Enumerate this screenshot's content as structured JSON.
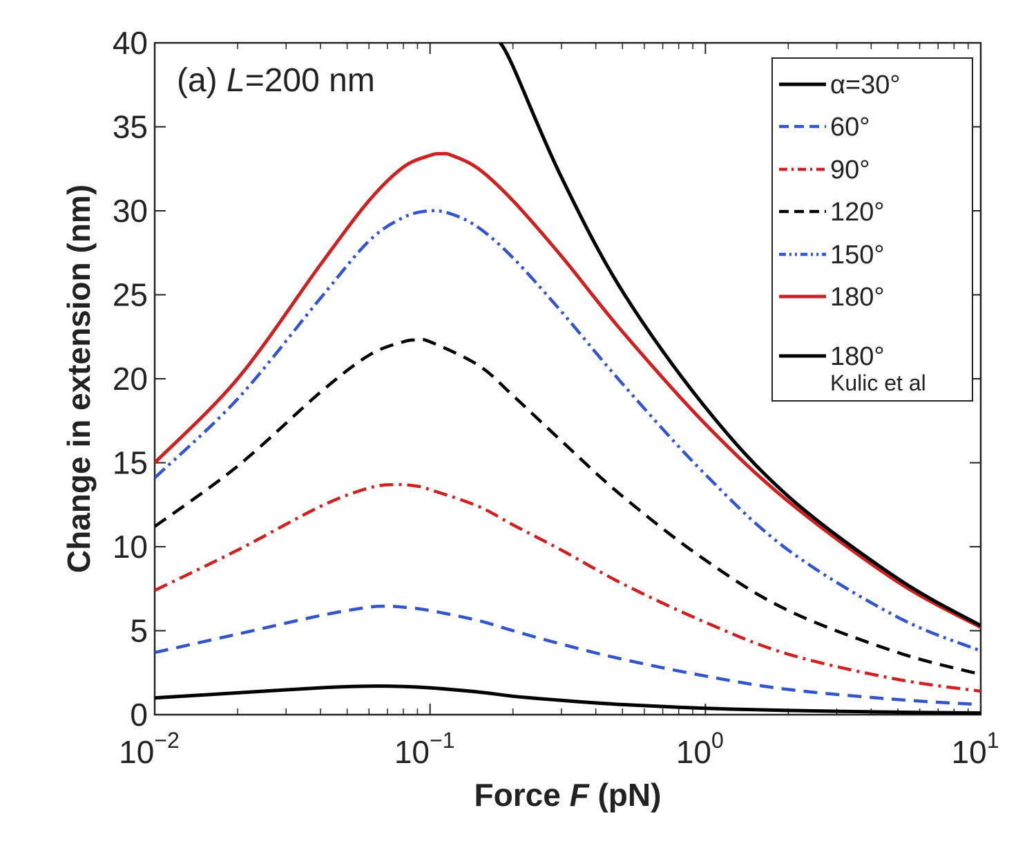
{
  "chart_data": {
    "type": "line",
    "xlabel_parts": [
      "Force ",
      "F",
      " (pN)"
    ],
    "ylabel": "Change in extension (nm)",
    "annotation_parts": [
      "(a) ",
      "L",
      "=200 nm"
    ],
    "x_scale": "log",
    "xlim": [
      0.01,
      10
    ],
    "ylim": [
      0,
      40
    ],
    "x_ticks": [
      {
        "value": 0.01,
        "base": "10",
        "exp": "−2"
      },
      {
        "value": 0.1,
        "base": "10",
        "exp": "−1"
      },
      {
        "value": 1,
        "base": "10",
        "exp": "0"
      },
      {
        "value": 10,
        "base": "10",
        "exp": "1"
      }
    ],
    "y_ticks": [
      0,
      5,
      10,
      15,
      20,
      25,
      30,
      35,
      40
    ],
    "grid": false,
    "legend_position": "top-right",
    "series": [
      {
        "name": "α=30°",
        "color": "#000000",
        "dash": "solid",
        "points": [
          [
            0.01,
            1.0
          ],
          [
            0.02,
            1.3
          ],
          [
            0.04,
            1.6
          ],
          [
            0.06,
            1.7
          ],
          [
            0.08,
            1.68
          ],
          [
            0.1,
            1.6
          ],
          [
            0.15,
            1.35
          ],
          [
            0.2,
            1.1
          ],
          [
            0.3,
            0.85
          ],
          [
            0.5,
            0.6
          ],
          [
            1,
            0.38
          ],
          [
            2,
            0.25
          ],
          [
            5,
            0.15
          ],
          [
            10,
            0.1
          ]
        ]
      },
      {
        "name": "60°",
        "color": "#3355cc",
        "dash": "dashed",
        "points": [
          [
            0.01,
            3.7
          ],
          [
            0.02,
            4.8
          ],
          [
            0.04,
            5.9
          ],
          [
            0.06,
            6.4
          ],
          [
            0.07,
            6.45
          ],
          [
            0.08,
            6.4
          ],
          [
            0.1,
            6.2
          ],
          [
            0.15,
            5.6
          ],
          [
            0.2,
            5.0
          ],
          [
            0.3,
            4.2
          ],
          [
            0.5,
            3.3
          ],
          [
            1,
            2.3
          ],
          [
            2,
            1.5
          ],
          [
            5,
            0.9
          ],
          [
            10,
            0.6
          ]
        ]
      },
      {
        "name": "90°",
        "color": "#cc2222",
        "dash": "dashdot",
        "points": [
          [
            0.01,
            7.4
          ],
          [
            0.02,
            9.8
          ],
          [
            0.04,
            12.4
          ],
          [
            0.06,
            13.5
          ],
          [
            0.075,
            13.7
          ],
          [
            0.09,
            13.6
          ],
          [
            0.1,
            13.4
          ],
          [
            0.15,
            12.4
          ],
          [
            0.2,
            11.3
          ],
          [
            0.3,
            9.8
          ],
          [
            0.5,
            7.8
          ],
          [
            1,
            5.5
          ],
          [
            2,
            3.6
          ],
          [
            5,
            2.1
          ],
          [
            10,
            1.4
          ]
        ]
      },
      {
        "name": "120°",
        "color": "#000000",
        "dash": "dashed",
        "points": [
          [
            0.01,
            11.2
          ],
          [
            0.02,
            14.8
          ],
          [
            0.04,
            19.2
          ],
          [
            0.06,
            21.4
          ],
          [
            0.08,
            22.2
          ],
          [
            0.09,
            22.3
          ],
          [
            0.1,
            22.2
          ],
          [
            0.15,
            20.8
          ],
          [
            0.2,
            19.0
          ],
          [
            0.3,
            16.3
          ],
          [
            0.5,
            13.0
          ],
          [
            1,
            9.2
          ],
          [
            2,
            6.2
          ],
          [
            5,
            3.7
          ],
          [
            10,
            2.4
          ]
        ]
      },
      {
        "name": "150°",
        "color": "#3355cc",
        "dash": "dashdotdot",
        "points": [
          [
            0.01,
            14.1
          ],
          [
            0.02,
            18.8
          ],
          [
            0.04,
            24.8
          ],
          [
            0.06,
            28.2
          ],
          [
            0.08,
            29.6
          ],
          [
            0.1,
            30.0
          ],
          [
            0.12,
            29.8
          ],
          [
            0.15,
            29.0
          ],
          [
            0.2,
            27.2
          ],
          [
            0.3,
            24.0
          ],
          [
            0.5,
            19.7
          ],
          [
            1,
            14.3
          ],
          [
            2,
            9.8
          ],
          [
            5,
            5.8
          ],
          [
            10,
            3.8
          ]
        ]
      },
      {
        "name": "180°",
        "color": "#cc2222",
        "dash": "solid",
        "points": [
          [
            0.01,
            15.0
          ],
          [
            0.02,
            20.0
          ],
          [
            0.04,
            26.8
          ],
          [
            0.06,
            30.6
          ],
          [
            0.08,
            32.6
          ],
          [
            0.1,
            33.3
          ],
          [
            0.11,
            33.4
          ],
          [
            0.12,
            33.3
          ],
          [
            0.15,
            32.5
          ],
          [
            0.2,
            30.6
          ],
          [
            0.3,
            27.3
          ],
          [
            0.5,
            22.8
          ],
          [
            1,
            17.3
          ],
          [
            2,
            12.7
          ],
          [
            5,
            7.9
          ],
          [
            10,
            5.2
          ]
        ]
      },
      {
        "name": "180°",
        "sublabel": "Kulic et al",
        "color": "#000000",
        "dash": "solid",
        "points": [
          [
            0.18,
            40.0
          ],
          [
            0.2,
            38.6
          ],
          [
            0.3,
            32.0
          ],
          [
            0.5,
            25.2
          ],
          [
            1,
            18.3
          ],
          [
            2,
            13.0
          ],
          [
            5,
            8.1
          ],
          [
            10,
            5.3
          ]
        ]
      }
    ]
  }
}
